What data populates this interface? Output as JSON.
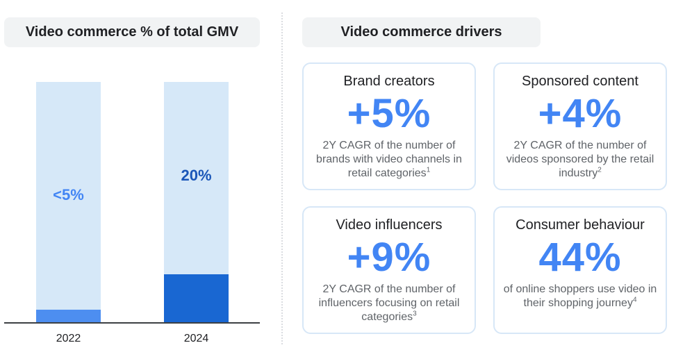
{
  "left_panel": {
    "title": "Video commerce % of total GMV"
  },
  "right_panel": {
    "title": "Video commerce drivers"
  },
  "chart_data": {
    "type": "bar",
    "title": "Video commerce % of total GMV",
    "categories": [
      "2022",
      "2024"
    ],
    "values": [
      5,
      20
    ],
    "data_labels": [
      "<5%",
      "20%"
    ],
    "ylim": [
      0,
      100
    ],
    "xlabel": "",
    "ylabel": "",
    "bar_colors": [
      "#4d8ef0",
      "#1967d2"
    ],
    "label_colors": [
      "#4285f4",
      "#1a56b8"
    ],
    "background_color": "#d6e8f8"
  },
  "cards": [
    {
      "title": "Brand creators",
      "stat": "+5%",
      "desc": "2Y CAGR of the number of brands with video channels in retail categories",
      "footnote": "1"
    },
    {
      "title": "Sponsored content",
      "stat": "+4%",
      "desc": "2Y CAGR of the number of videos sponsored by the retail industry",
      "footnote": "2"
    },
    {
      "title": "Video influencers",
      "stat": "+9%",
      "desc": "2Y CAGR of the number of influencers focusing on retail categories",
      "footnote": "3"
    },
    {
      "title": "Consumer behaviour",
      "stat": "44%",
      "desc": "of online shoppers use video in their shopping journey",
      "footnote": "4"
    }
  ]
}
